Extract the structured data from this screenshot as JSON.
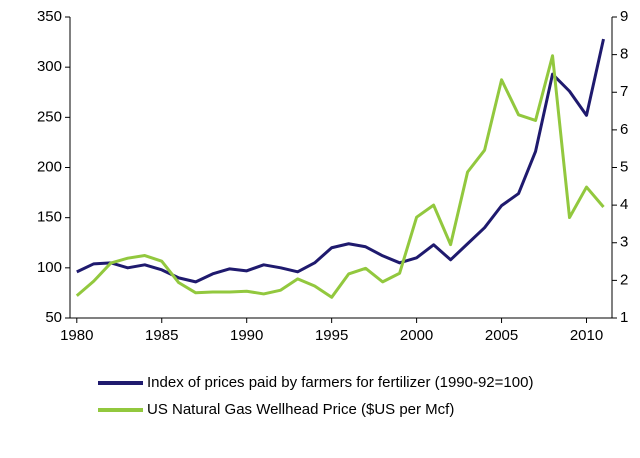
{
  "chart_data": {
    "type": "line",
    "x": [
      1980,
      1981,
      1982,
      1983,
      1984,
      1985,
      1986,
      1987,
      1988,
      1989,
      1990,
      1991,
      1992,
      1993,
      1994,
      1995,
      1996,
      1997,
      1998,
      1999,
      2000,
      2001,
      2002,
      2003,
      2004,
      2005,
      2006,
      2007,
      2008,
      2009,
      2010,
      2011
    ],
    "series": [
      {
        "name": "Index of prices paid by farmers for fertilizer (1990-92=100)",
        "color": "#1f1a6e",
        "values": [
          96,
          104,
          105,
          100,
          103,
          98,
          90,
          86,
          94,
          99,
          97,
          103,
          100,
          96,
          105,
          120,
          124,
          121,
          112,
          105,
          110,
          123,
          108,
          124,
          140,
          162,
          174,
          216,
          293,
          276,
          252,
          328
        ]
      },
      {
        "name": "US Natural Gas Wellhead Price ($US per Mcf)",
        "color": "#92c83e",
        "axis": "y2",
        "values": [
          1.59,
          1.98,
          2.46,
          2.59,
          2.66,
          2.51,
          1.94,
          1.67,
          1.69,
          1.69,
          1.71,
          1.64,
          1.74,
          2.04,
          1.85,
          1.55,
          2.17,
          2.32,
          1.96,
          2.19,
          3.68,
          4.0,
          2.95,
          4.88,
          5.46,
          7.33,
          6.4,
          6.25,
          7.97,
          3.67,
          4.48,
          3.95
        ]
      }
    ],
    "xlim": [
      1979.6,
      2011.5
    ],
    "xticks": [
      1980,
      1985,
      1990,
      1995,
      2000,
      2005,
      2010
    ],
    "ylim": [
      50,
      350
    ],
    "yticks": [
      50,
      100,
      150,
      200,
      250,
      300,
      350
    ],
    "y2lim": [
      1,
      9
    ],
    "y2ticks": [
      1,
      2,
      3,
      4,
      5,
      6,
      7,
      8,
      9
    ],
    "legend": "bottom"
  }
}
